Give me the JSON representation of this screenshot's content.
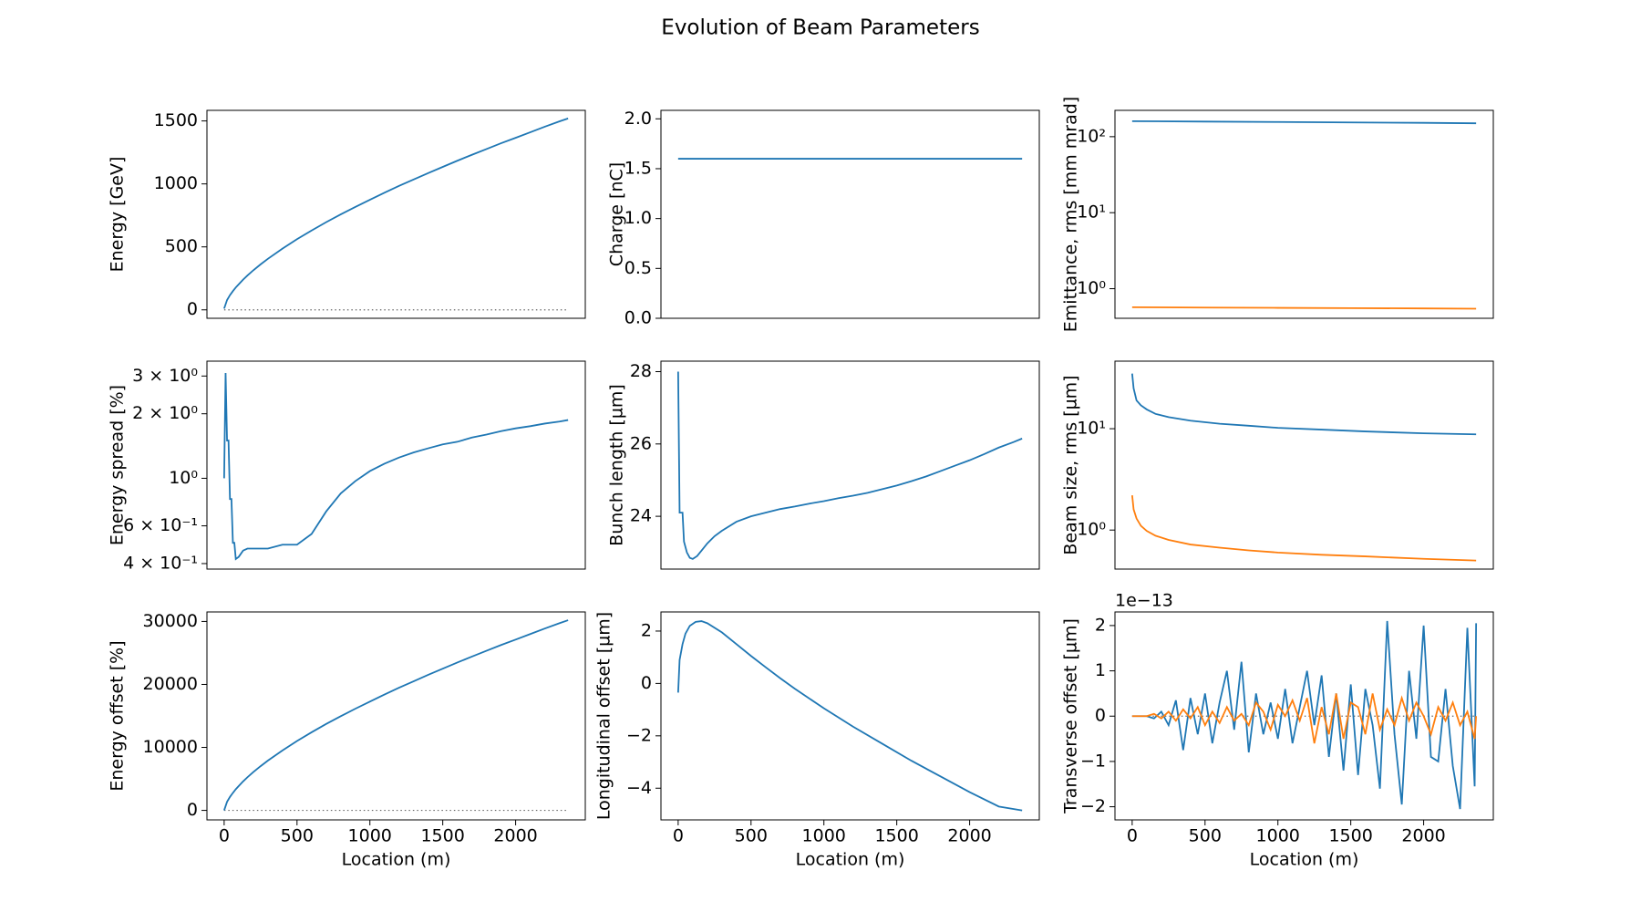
{
  "title": "Evolution of Beam Parameters",
  "chart_data": [
    {
      "type": "line",
      "ylabel": "Energy [GeV]",
      "xlim": [
        -118,
        2478
      ],
      "ylim": [
        -67,
        1584
      ],
      "yticks": [
        0,
        500,
        1000,
        1500
      ],
      "hline": 0,
      "x": [
        0,
        20,
        40,
        60,
        80,
        100,
        130,
        160,
        200,
        250,
        300,
        400,
        500,
        600,
        700,
        800,
        900,
        1000,
        1100,
        1200,
        1300,
        1400,
        1500,
        1600,
        1700,
        1800,
        1900,
        2000,
        2100,
        2200,
        2300,
        2360
      ],
      "series": [
        {
          "color": "#1f77b4",
          "values": [
            10,
            78,
            117,
            149,
            178,
            203,
            240,
            273,
            314,
            361,
            405,
            486,
            561,
            630,
            696,
            758,
            817,
            874,
            930,
            984,
            1035,
            1086,
            1135,
            1184,
            1231,
            1277,
            1323,
            1366,
            1410,
            1454,
            1496,
            1520
          ]
        }
      ]
    },
    {
      "type": "line",
      "ylabel": "Charge [nC]",
      "xlim": [
        -118,
        2478
      ],
      "ylim": [
        0,
        2.085
      ],
      "yticks": [
        {
          "value": 0,
          "label": "0.0"
        },
        0.5,
        {
          "value": 1,
          "label": "1.0"
        },
        1.5,
        {
          "value": 2,
          "label": "2.0"
        }
      ],
      "x": [
        0,
        2360
      ],
      "series": [
        {
          "color": "#1f77b4",
          "values": [
            1.6,
            1.6
          ]
        }
      ]
    },
    {
      "type": "line",
      "ylabel": "Emittance, rms [mm mrad]",
      "log": true,
      "xlim": [
        -118,
        2478
      ],
      "ylim": [
        0.408,
        222
      ],
      "yticks": [
        {
          "value": 1,
          "label": "10⁰"
        },
        {
          "value": 10,
          "label": "10¹"
        },
        {
          "value": 100,
          "label": "10²"
        }
      ],
      "x": [
        0,
        500,
        1000,
        1500,
        2000,
        2360
      ],
      "series": [
        {
          "color": "#1f77b4",
          "values": [
            160,
            158,
            156,
            154,
            152,
            150
          ]
        },
        {
          "color": "#ff7f0e",
          "values": [
            0.57,
            0.565,
            0.56,
            0.555,
            0.55,
            0.545
          ]
        }
      ]
    },
    {
      "type": "line",
      "ylabel": "Energy spread [%]",
      "log": true,
      "xlim": [
        -118,
        2478
      ],
      "ylim": [
        0.377,
        3.52
      ],
      "yticks": [
        {
          "value": 0.4,
          "label": "4 × 10⁻¹"
        },
        {
          "value": 0.6,
          "label": "6 × 10⁻¹"
        },
        {
          "value": 1,
          "label": "10⁰"
        },
        {
          "value": 2,
          "label": "2 × 10⁰"
        },
        {
          "value": 3,
          "label": "3 × 10⁰"
        }
      ],
      "x": [
        0,
        10,
        20,
        30,
        40,
        50,
        60,
        70,
        80,
        100,
        130,
        160,
        200,
        250,
        300,
        400,
        500,
        600,
        700,
        800,
        900,
        1000,
        1100,
        1200,
        1300,
        1400,
        1500,
        1600,
        1700,
        1800,
        1900,
        2000,
        2100,
        2200,
        2300,
        2360
      ],
      "series": [
        {
          "color": "#1f77b4",
          "values": [
            1.0,
            3.1,
            1.5,
            1.5,
            0.8,
            0.8,
            0.5,
            0.5,
            0.42,
            0.43,
            0.46,
            0.47,
            0.47,
            0.47,
            0.47,
            0.49,
            0.49,
            0.55,
            0.7,
            0.85,
            0.97,
            1.08,
            1.17,
            1.25,
            1.32,
            1.38,
            1.44,
            1.48,
            1.55,
            1.6,
            1.66,
            1.71,
            1.75,
            1.8,
            1.84,
            1.87
          ]
        }
      ]
    },
    {
      "type": "line",
      "ylabel": "Bunch length [µm]",
      "xlim": [
        -118,
        2478
      ],
      "ylim": [
        22.54,
        28.29
      ],
      "yticks": [
        24,
        26,
        28
      ],
      "x": [
        0,
        10,
        30,
        40,
        60,
        80,
        100,
        130,
        160,
        200,
        250,
        300,
        400,
        500,
        600,
        700,
        800,
        900,
        1000,
        1100,
        1200,
        1300,
        1400,
        1500,
        1600,
        1700,
        1800,
        1900,
        2000,
        2100,
        2200,
        2300,
        2360
      ],
      "series": [
        {
          "color": "#1f77b4",
          "values": [
            28,
            24.1,
            24.1,
            23.3,
            23.0,
            22.85,
            22.82,
            22.9,
            23.05,
            23.25,
            23.45,
            23.6,
            23.85,
            24.0,
            24.1,
            24.2,
            24.27,
            24.35,
            24.42,
            24.5,
            24.57,
            24.65,
            24.75,
            24.85,
            24.97,
            25.1,
            25.25,
            25.4,
            25.55,
            25.72,
            25.9,
            26.05,
            26.15
          ]
        }
      ]
    },
    {
      "type": "line",
      "ylabel": "Beam size, rms [µm]",
      "log": true,
      "xlim": [
        -118,
        2478
      ],
      "ylim": [
        0.412,
        46.4
      ],
      "yticks": [
        {
          "value": 1,
          "label": "10⁰"
        },
        {
          "value": 10,
          "label": "10¹"
        }
      ],
      "x": [
        0,
        10,
        30,
        60,
        100,
        160,
        250,
        400,
        600,
        800,
        1000,
        1300,
        1600,
        2000,
        2360
      ],
      "series": [
        {
          "color": "#1f77b4",
          "values": [
            35,
            25,
            19,
            17,
            15.5,
            14,
            13,
            12,
            11.2,
            10.7,
            10.2,
            9.8,
            9.4,
            9.0,
            8.8
          ]
        },
        {
          "color": "#ff7f0e",
          "values": [
            2.2,
            1.6,
            1.3,
            1.1,
            0.98,
            0.88,
            0.8,
            0.72,
            0.67,
            0.63,
            0.6,
            0.57,
            0.55,
            0.52,
            0.5
          ]
        }
      ]
    },
    {
      "type": "line",
      "ylabel": "Energy offset [%]",
      "xlabel": "Location (m)",
      "xlim": [
        -118,
        2478
      ],
      "xticks": [
        0,
        500,
        1000,
        1500,
        2000
      ],
      "ylim": [
        -1510,
        31510
      ],
      "yticks": [
        0,
        10000,
        20000,
        30000
      ],
      "hline": 0,
      "x": [
        0,
        20,
        40,
        60,
        80,
        100,
        130,
        160,
        200,
        250,
        300,
        400,
        500,
        600,
        700,
        800,
        900,
        1000,
        1100,
        1200,
        1300,
        1400,
        1500,
        1600,
        1700,
        1800,
        1900,
        2000,
        2100,
        2200,
        2300,
        2360
      ],
      "series": [
        {
          "color": "#1f77b4",
          "values": [
            0,
            1360,
            2140,
            2780,
            3360,
            3860,
            4600,
            5260,
            6080,
            7020,
            7900,
            9520,
            11020,
            12400,
            13720,
            14960,
            16140,
            17280,
            18400,
            19480,
            20500,
            21520,
            22500,
            23480,
            24420,
            25340,
            26260,
            27120,
            28000,
            28880,
            29720,
            30200
          ]
        }
      ]
    },
    {
      "type": "line",
      "ylabel": "Longitudinal offset [µm]",
      "xlabel": "Location (m)",
      "xlim": [
        -118,
        2478
      ],
      "xticks": [
        0,
        500,
        1000,
        1500,
        2000
      ],
      "ylim": [
        -5.21,
        2.73
      ],
      "yticks": [
        {
          "value": -4,
          "label": "−4"
        },
        {
          "value": -2,
          "label": "−2"
        },
        0,
        2
      ],
      "x": [
        0,
        10,
        30,
        50,
        80,
        120,
        160,
        200,
        300,
        400,
        500,
        600,
        700,
        800,
        1000,
        1200,
        1400,
        1600,
        1800,
        2000,
        2200,
        2360
      ],
      "series": [
        {
          "color": "#1f77b4",
          "values": [
            -0.35,
            0.9,
            1.5,
            1.9,
            2.2,
            2.35,
            2.38,
            2.3,
            1.95,
            1.5,
            1.05,
            0.62,
            0.2,
            -0.2,
            -0.95,
            -1.65,
            -2.3,
            -2.95,
            -3.55,
            -4.15,
            -4.7,
            -4.85
          ]
        }
      ]
    },
    {
      "type": "line",
      "ylabel": "Transverse offset [µm]",
      "xlabel": "Location (m)",
      "offset_text": "1e−13",
      "xlim": [
        -118,
        2478
      ],
      "xticks": [
        0,
        500,
        1000,
        1500,
        2000
      ],
      "ylim": [
        -2.29,
        2.3
      ],
      "yticks": [
        {
          "value": -2,
          "label": "−2"
        },
        {
          "value": -1,
          "label": "−1"
        },
        0,
        1,
        2
      ],
      "hline": 0,
      "x": [
        0,
        50,
        100,
        150,
        200,
        250,
        300,
        350,
        400,
        450,
        500,
        550,
        600,
        650,
        700,
        750,
        800,
        850,
        900,
        950,
        1000,
        1050,
        1100,
        1150,
        1200,
        1250,
        1300,
        1350,
        1400,
        1450,
        1500,
        1550,
        1600,
        1650,
        1700,
        1750,
        1800,
        1850,
        1900,
        1950,
        2000,
        2050,
        2100,
        2150,
        2200,
        2250,
        2300,
        2350,
        2360
      ],
      "series": [
        {
          "color": "#1f77b4",
          "values": [
            0,
            0,
            0,
            -0.05,
            0.1,
            -0.2,
            0.35,
            -0.75,
            0.4,
            -0.4,
            0.5,
            -0.6,
            0.3,
            1.0,
            -0.3,
            1.2,
            -0.8,
            0.5,
            -0.4,
            0.3,
            -0.5,
            0.6,
            -0.6,
            0.2,
            1.0,
            -0.2,
            0.9,
            -0.9,
            0.5,
            -1.2,
            0.7,
            -1.3,
            0.6,
            -0.2,
            -1.6,
            2.1,
            -0.4,
            -1.95,
            1.0,
            -0.5,
            2.0,
            -0.9,
            -1.0,
            0.6,
            -1.1,
            -2.05,
            1.95,
            -1.55,
            2.05
          ]
        },
        {
          "color": "#ff7f0e",
          "values": [
            0,
            0,
            0,
            0.05,
            -0.05,
            0.1,
            -0.1,
            0.15,
            -0.05,
            0.2,
            -0.2,
            0.1,
            -0.15,
            0.2,
            -0.1,
            0.05,
            -0.2,
            0.3,
            0.1,
            -0.3,
            0.25,
            0.0,
            0.35,
            -0.1,
            0.4,
            -0.6,
            0.2,
            -0.4,
            0.5,
            -0.5,
            0.3,
            0.2,
            -0.4,
            0.5,
            -0.3,
            0.15,
            -0.2,
            0.4,
            -0.1,
            0.3,
            0.0,
            -0.4,
            0.2,
            -0.1,
            0.3,
            -0.2,
            0.1,
            -0.5,
            0.0
          ]
        }
      ]
    }
  ]
}
